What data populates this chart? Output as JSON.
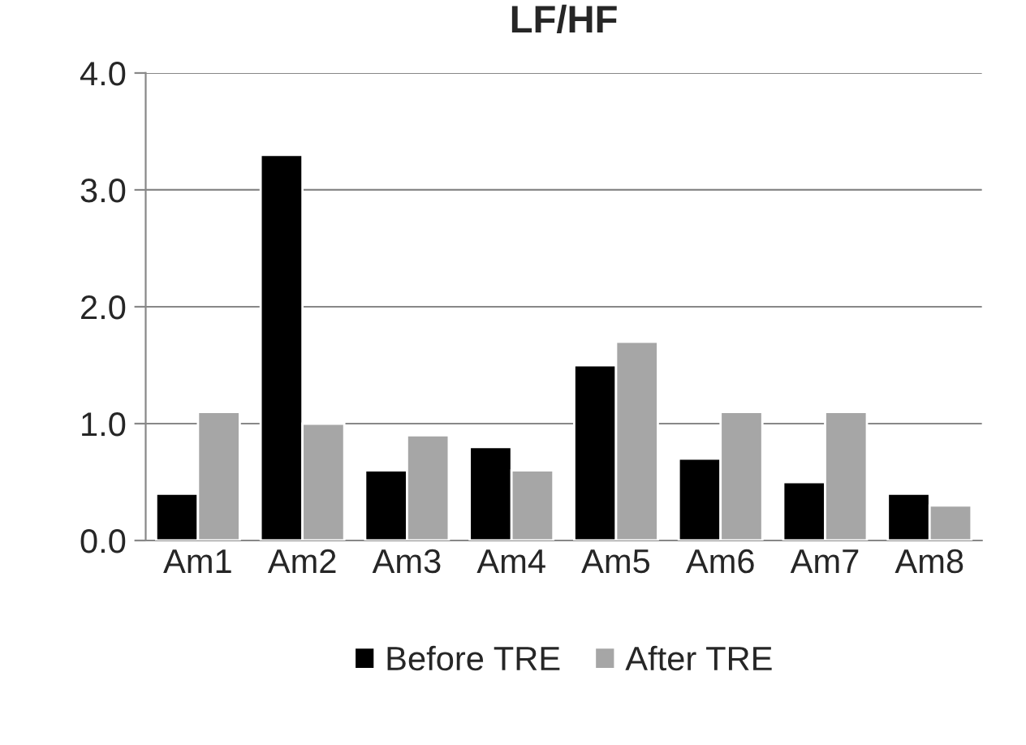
{
  "chart_data": {
    "type": "bar",
    "title": "LF/HF",
    "categories": [
      "Am1",
      "Am2",
      "Am3",
      "Am4",
      "Am5",
      "Am6",
      "Am7",
      "Am8"
    ],
    "series": [
      {
        "name": "Before TRE",
        "color": "#000000",
        "values": [
          0.4,
          3.3,
          0.6,
          0.8,
          1.5,
          0.7,
          0.5,
          0.4
        ]
      },
      {
        "name": "After TRE",
        "color": "#a6a6a6",
        "values": [
          1.1,
          1.0,
          0.9,
          0.6,
          1.7,
          1.1,
          1.1,
          0.3
        ]
      }
    ],
    "ylim": [
      0,
      4
    ],
    "yticks": [
      {
        "value": 0,
        "label": "0.0"
      },
      {
        "value": 1,
        "label": "1.0"
      },
      {
        "value": 2,
        "label": "2.0"
      },
      {
        "value": 3,
        "label": "3.0"
      },
      {
        "value": 4,
        "label": "4.0"
      }
    ],
    "grid": "y",
    "legend": "bottom"
  }
}
